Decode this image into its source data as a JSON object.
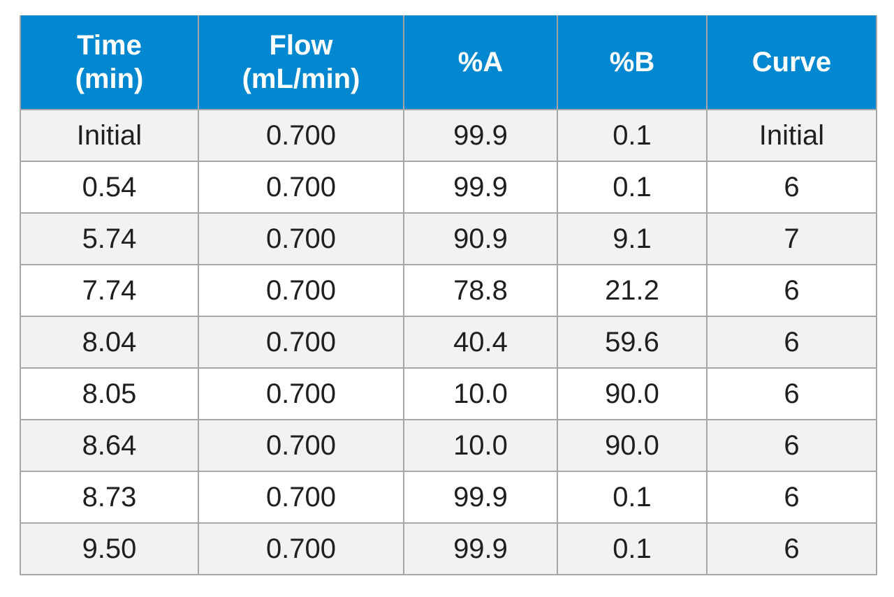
{
  "table": {
    "headers": [
      [
        "Time",
        "(min)"
      ],
      [
        "Flow",
        "(mL/min)"
      ],
      [
        "%A"
      ],
      [
        "%B"
      ],
      [
        "Curve"
      ]
    ],
    "rows": [
      [
        "Initial",
        "0.700",
        "99.9",
        "0.1",
        "Initial"
      ],
      [
        "0.54",
        "0.700",
        "99.9",
        "0.1",
        "6"
      ],
      [
        "5.74",
        "0.700",
        "90.9",
        "9.1",
        "7"
      ],
      [
        "7.74",
        "0.700",
        "78.8",
        "21.2",
        "6"
      ],
      [
        "8.04",
        "0.700",
        "40.4",
        "59.6",
        "6"
      ],
      [
        "8.05",
        "0.700",
        "10.0",
        "90.0",
        "6"
      ],
      [
        "8.64",
        "0.700",
        "10.0",
        "90.0",
        "6"
      ],
      [
        "8.73",
        "0.700",
        "99.9",
        "0.1",
        "6"
      ],
      [
        "9.50",
        "0.700",
        "99.9",
        "0.1",
        "6"
      ]
    ]
  },
  "colors": {
    "header_bg": "#0288d1",
    "header_text": "#ffffff",
    "stripe_bg": "#f2f2f4",
    "row_bg": "#ffffff",
    "border": "#a7a7a7"
  }
}
